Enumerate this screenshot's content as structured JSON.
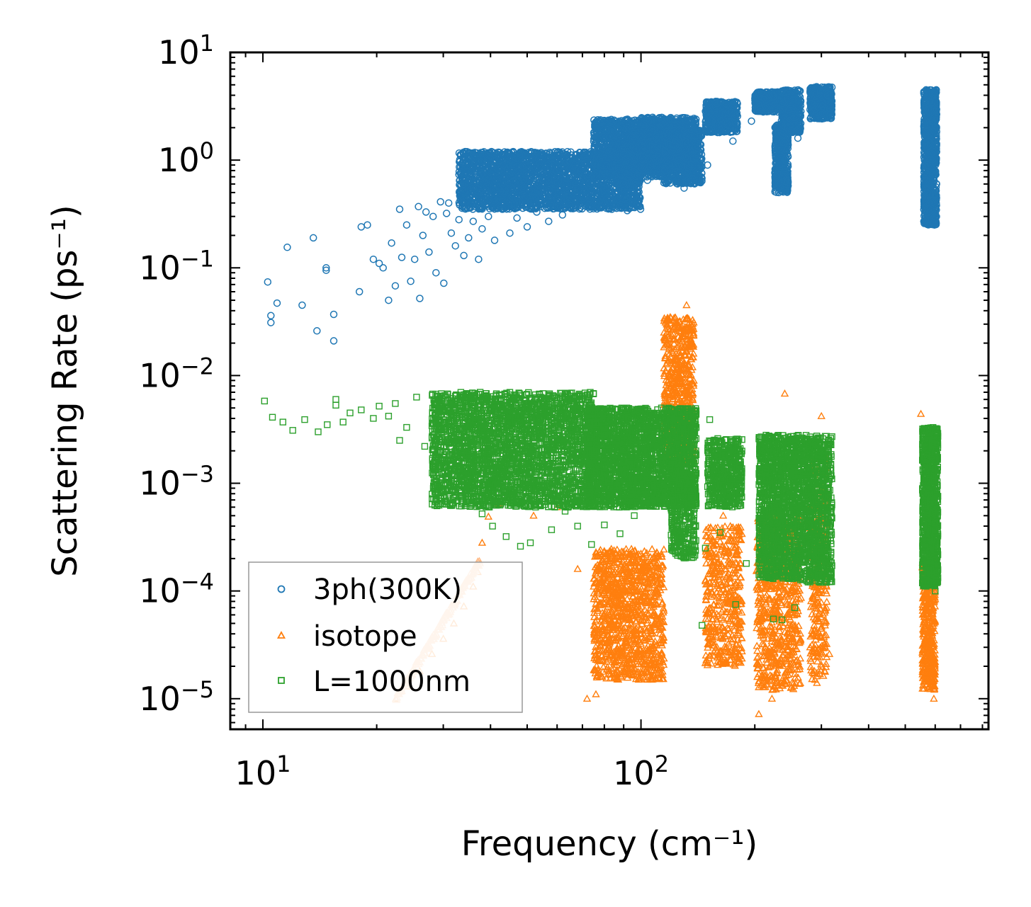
{
  "chart_data": {
    "type": "scatter",
    "title": "",
    "xlabel": "Frequency (cm⁻¹)",
    "ylabel": "Scattering Rate (ps⁻¹)",
    "xscale": "log",
    "yscale": "log",
    "xlim": [
      8.2,
      830
    ],
    "ylim": [
      5.2e-06,
      10
    ],
    "grid": false,
    "legend_position": "lower-left",
    "x_ticks": [
      {
        "value": 10,
        "base": "10",
        "exp": "1"
      },
      {
        "value": 100,
        "base": "10",
        "exp": "2"
      }
    ],
    "y_ticks": [
      {
        "value": 10,
        "base": "10",
        "exp": "1"
      },
      {
        "value": 1,
        "base": "10",
        "exp": "0"
      },
      {
        "value": 0.1,
        "base": "10",
        "exp": "−1"
      },
      {
        "value": 0.01,
        "base": "10",
        "exp": "−2"
      },
      {
        "value": 0.001,
        "base": "10",
        "exp": "−3"
      },
      {
        "value": 0.0001,
        "base": "10",
        "exp": "−4"
      },
      {
        "value": 1e-05,
        "base": "10",
        "exp": "−5"
      }
    ],
    "series": [
      {
        "name": "3ph(300K)",
        "marker": "circle",
        "color": "#1f77b4",
        "points": [
          [
            10.3,
            0.074
          ],
          [
            10.5,
            0.031
          ],
          [
            10.5,
            0.036
          ],
          [
            10.9,
            0.047
          ],
          [
            11.6,
            0.155
          ],
          [
            12.7,
            0.045
          ],
          [
            13.6,
            0.19
          ],
          [
            13.9,
            0.026
          ],
          [
            14.7,
            0.1
          ],
          [
            14.7,
            0.095
          ],
          [
            15.4,
            0.037
          ],
          [
            15.4,
            0.021
          ],
          [
            18.0,
            0.06
          ],
          [
            18.2,
            0.24
          ],
          [
            18.9,
            0.25
          ],
          [
            19.6,
            0.12
          ],
          [
            20.3,
            0.11
          ],
          [
            20.8,
            0.1
          ],
          [
            21.5,
            0.05
          ],
          [
            21.9,
            0.17
          ],
          [
            22.4,
            0.068
          ],
          [
            23.0,
            0.35
          ],
          [
            23.3,
            0.125
          ],
          [
            24.0,
            0.25
          ],
          [
            24.6,
            0.075
          ],
          [
            25.2,
            0.12
          ],
          [
            25.8,
            0.37
          ],
          [
            26.0,
            0.052
          ],
          [
            26.5,
            0.2
          ],
          [
            27.0,
            0.33
          ],
          [
            27.5,
            0.14
          ],
          [
            28.2,
            0.3
          ],
          [
            28.7,
            0.09
          ],
          [
            29.5,
            0.41
          ],
          [
            30.1,
            0.072
          ],
          [
            30.6,
            0.32
          ],
          [
            31.0,
            0.4
          ],
          [
            31.5,
            0.21
          ],
          [
            32.3,
            0.16
          ],
          [
            33.0,
            0.28
          ],
          [
            34.0,
            0.13
          ],
          [
            35.0,
            0.19
          ],
          [
            36.0,
            0.27
          ],
          [
            37.2,
            0.12
          ],
          [
            38.0,
            0.23
          ],
          [
            39.5,
            0.3
          ],
          [
            41.0,
            0.18
          ],
          [
            43.0,
            0.35
          ],
          [
            45.0,
            0.21
          ],
          [
            47.0,
            0.29
          ],
          [
            50.0,
            0.24
          ],
          [
            53.0,
            0.33
          ],
          [
            57.0,
            0.27
          ],
          [
            62.0,
            0.31
          ],
          [
            67.0,
            0.38
          ],
          [
            73.0,
            0.44
          ],
          [
            80.0,
            0.52
          ],
          [
            86.0,
            0.6
          ],
          [
            92.0,
            0.34
          ],
          [
            98.0,
            0.72
          ],
          [
            104.0,
            0.65
          ],
          [
            110.0,
            0.88
          ],
          [
            130.0,
            0.55
          ],
          [
            150.0,
            0.9
          ],
          [
            175.0,
            1.5
          ],
          [
            196.0,
            2.3
          ],
          [
            230.0,
            2.8
          ],
          [
            260.0,
            1.6
          ],
          [
            300.0,
            3.0
          ]
        ],
        "bands": [
          {
            "x": [
              33,
              100
            ],
            "y": [
              0.35,
              1.2
            ],
            "n": 2600
          },
          {
            "x": [
              75,
              115
            ],
            "y": [
              0.7,
              2.4
            ],
            "n": 1100
          },
          {
            "x": [
              100,
              140
            ],
            "y": [
              0.8,
              2.5
            ],
            "n": 900
          },
          {
            "x": [
              115,
              145
            ],
            "y": [
              0.6,
              1.9
            ],
            "n": 600
          },
          {
            "x": [
              148,
              180
            ],
            "y": [
              1.8,
              3.5
            ],
            "n": 500
          },
          {
            "x": [
              200,
              230
            ],
            "y": [
              2.8,
              4.3
            ],
            "n": 350
          },
          {
            "x": [
              226,
              245
            ],
            "y": [
              0.5,
              2.2
            ],
            "n": 450
          },
          {
            "x": [
              235,
              265
            ],
            "y": [
              1.8,
              4.5
            ],
            "n": 400
          },
          {
            "x": [
              280,
              320
            ],
            "y": [
              2.4,
              4.8
            ],
            "n": 450
          },
          {
            "x": [
              560,
              605
            ],
            "y": [
              0.25,
              4.5
            ],
            "n": 900
          }
        ]
      },
      {
        "name": "isotope",
        "marker": "triangle",
        "color": "#ff7f0e",
        "points": [
          [
            22.5,
            1e-05
          ],
          [
            24.0,
            1.3e-05
          ],
          [
            26.0,
            1.8e-05
          ],
          [
            28.0,
            2.6e-05
          ],
          [
            30.0,
            3.6e-05
          ],
          [
            32.0,
            5e-05
          ],
          [
            34.0,
            7.2e-05
          ],
          [
            36.0,
            0.00011
          ],
          [
            37.0,
            0.00015
          ],
          [
            38.0,
            0.00028
          ],
          [
            39.5,
            0.00049
          ],
          [
            42.0,
            0.00065
          ],
          [
            46.0,
            0.00075
          ],
          [
            52.0,
            0.0005
          ],
          [
            60.0,
            0.0006
          ],
          [
            68.0,
            0.00016
          ],
          [
            72.0,
            1e-05
          ],
          [
            76.0,
            1.1e-05
          ],
          [
            82.0,
            2.4e-05
          ],
          [
            90.0,
            1.8e-05
          ],
          [
            100.0,
            4e-05
          ],
          [
            118.0,
            0.0055
          ],
          [
            125.0,
            0.012
          ],
          [
            132.0,
            0.045
          ],
          [
            137.0,
            0.0012
          ],
          [
            150.0,
            0.0001
          ],
          [
            165.0,
            0.0005
          ],
          [
            172.0,
            0.0002
          ],
          [
            184.0,
            8e-05
          ],
          [
            205.0,
            7.2e-06
          ],
          [
            222.0,
            1e-05
          ],
          [
            240.0,
            0.0068
          ],
          [
            265.0,
            0.00025
          ],
          [
            280.0,
            3e-05
          ],
          [
            292.0,
            1.4e-05
          ],
          [
            300.0,
            0.0042
          ],
          [
            315.0,
            2.6e-05
          ],
          [
            550.0,
            0.0044
          ],
          [
            575.0,
            1.5e-05
          ],
          [
            595.0,
            1e-05
          ]
        ],
        "bands": [
          {
            "x": [
              75,
              115
            ],
            "y": [
              1.5e-05,
              0.00025
            ],
            "n": 1100
          },
          {
            "x": [
              115,
              138
            ],
            "y": [
              0.0015,
              0.035
            ],
            "n": 600
          },
          {
            "x": [
              148,
              185
            ],
            "y": [
              2e-05,
              0.0004
            ],
            "n": 450
          },
          {
            "x": [
              202,
              265
            ],
            "y": [
              1.2e-05,
              0.0005
            ],
            "n": 700
          },
          {
            "x": [
              280,
              310
            ],
            "y": [
              1.5e-05,
              0.002
            ],
            "n": 300
          },
          {
            "x": [
              555,
              600
            ],
            "y": [
              1.2e-05,
              0.0002
            ],
            "n": 450
          }
        ]
      },
      {
        "name": "L=1000nm",
        "marker": "square",
        "color": "#2ca02c",
        "points": [
          [
            10.1,
            0.0058
          ],
          [
            10.6,
            0.0041
          ],
          [
            11.3,
            0.0037
          ],
          [
            12.0,
            0.0031
          ],
          [
            12.9,
            0.0039
          ],
          [
            14.0,
            0.003
          ],
          [
            14.8,
            0.0035
          ],
          [
            15.6,
            0.0053
          ],
          [
            15.6,
            0.006
          ],
          [
            16.3,
            0.0037
          ],
          [
            17.0,
            0.0045
          ],
          [
            18.2,
            0.0048
          ],
          [
            19.6,
            0.004
          ],
          [
            20.3,
            0.0052
          ],
          [
            21.5,
            0.0042
          ],
          [
            22.4,
            0.0055
          ],
          [
            23.0,
            0.0025
          ],
          [
            24.0,
            0.0033
          ],
          [
            25.5,
            0.0063
          ],
          [
            26.8,
            0.0022
          ],
          [
            28.5,
            0.0015
          ],
          [
            30.5,
            0.0031
          ],
          [
            32.5,
            0.0011
          ],
          [
            35.0,
            0.00075
          ],
          [
            38.0,
            0.00052
          ],
          [
            40.5,
            0.0004
          ],
          [
            44.0,
            0.00032
          ],
          [
            48.0,
            0.00026
          ],
          [
            51.0,
            0.00028
          ],
          [
            58.0,
            0.00037
          ],
          [
            63.0,
            0.00055
          ],
          [
            68.0,
            0.0004
          ],
          [
            74.0,
            0.00027
          ],
          [
            80.0,
            0.00041
          ],
          [
            88.0,
            0.00034
          ],
          [
            96.0,
            0.0005
          ],
          [
            140.0,
            0.00065
          ],
          [
            145.0,
            4.8e-05
          ],
          [
            148.0,
            0.00025
          ],
          [
            152.0,
            0.0039
          ],
          [
            162.0,
            0.00035
          ],
          [
            178.0,
            7.5e-05
          ],
          [
            190.0,
            0.00018
          ],
          [
            224.0,
            5.5e-05
          ],
          [
            236.0,
            5.4e-05
          ],
          [
            255.0,
            7e-05
          ],
          [
            282.0,
            0.00022
          ],
          [
            595.0,
            0.0002
          ],
          [
            600.0,
            0.0001
          ]
        ],
        "bands": [
          {
            "x": [
              28,
              75
            ],
            "y": [
              0.0006,
              0.007
            ],
            "n": 2800
          },
          {
            "x": [
              72,
              140
            ],
            "y": [
              0.0006,
              0.005
            ],
            "n": 2400
          },
          {
            "x": [
              120,
              140
            ],
            "y": [
              0.0002,
              0.0012
            ],
            "n": 300
          },
          {
            "x": [
              150,
              185
            ],
            "y": [
              0.0006,
              0.0026
            ],
            "n": 500
          },
          {
            "x": [
              205,
              262
            ],
            "y": [
              0.00013,
              0.0028
            ],
            "n": 1200
          },
          {
            "x": [
              262,
              320
            ],
            "y": [
              0.00012,
              0.0028
            ],
            "n": 900
          },
          {
            "x": [
              555,
              610
            ],
            "y": [
              0.00011,
              0.0033
            ],
            "n": 900
          }
        ]
      }
    ]
  }
}
